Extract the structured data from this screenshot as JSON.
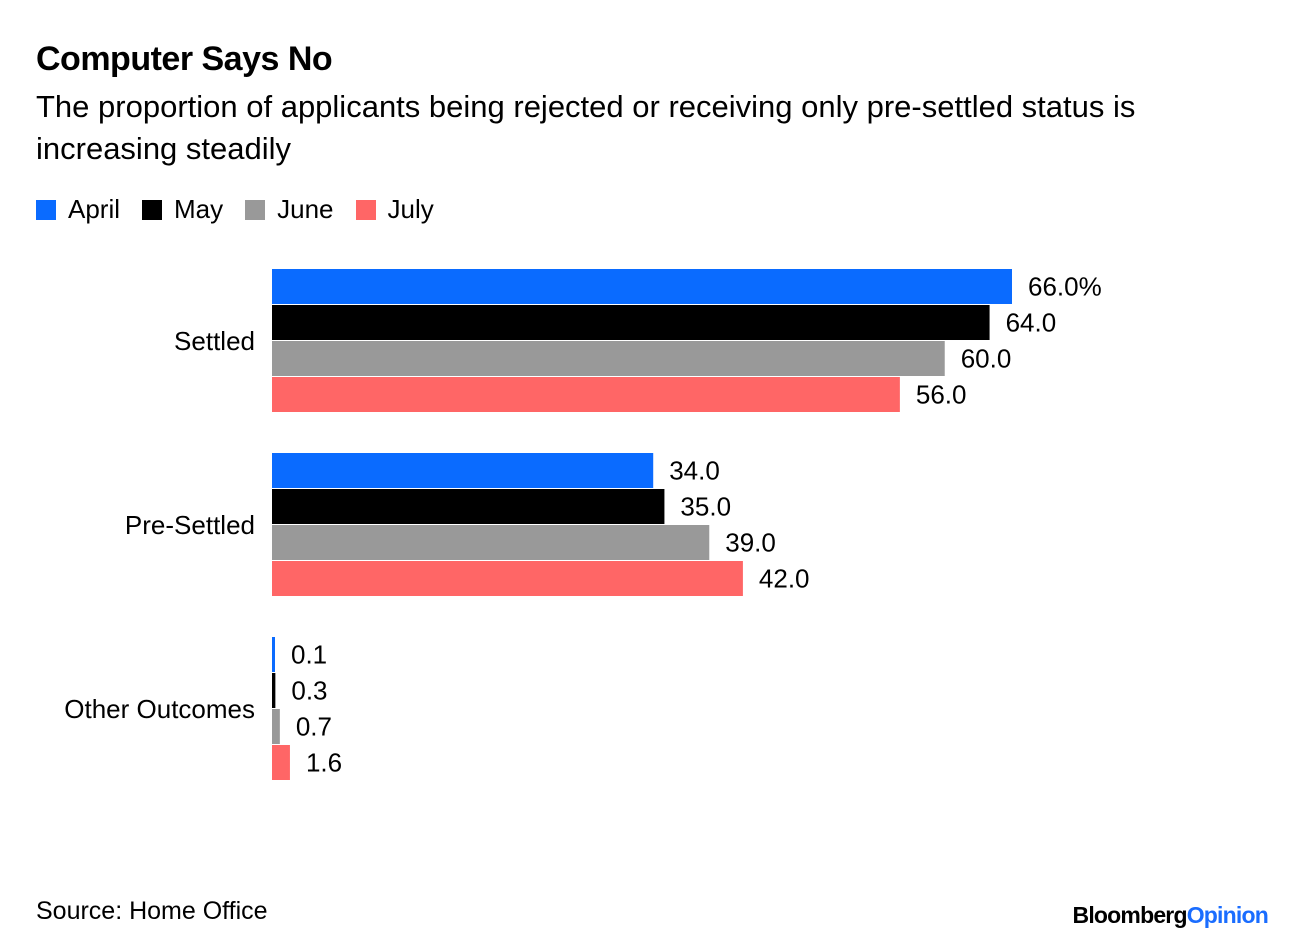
{
  "chart_data": {
    "type": "bar",
    "orientation": "horizontal",
    "title": "Computer Says No",
    "subtitle": "The proportion of applicants being rejected or receiving only pre-settled status is increasing steadily",
    "categories": [
      "Settled",
      "Pre-Settled",
      "Other Outcomes"
    ],
    "series": [
      {
        "name": "April",
        "color": "#0a6bff",
        "values": [
          66.0,
          34.0,
          0.1
        ],
        "labels": [
          "66.0%",
          "34.0",
          "0.1"
        ]
      },
      {
        "name": "May",
        "color": "#000000",
        "values": [
          64.0,
          35.0,
          0.3
        ],
        "labels": [
          "64.0",
          "35.0",
          "0.3"
        ]
      },
      {
        "name": "June",
        "color": "#999999",
        "values": [
          60.0,
          39.0,
          0.7
        ],
        "labels": [
          "60.0",
          "39.0",
          "0.7"
        ]
      },
      {
        "name": "July",
        "color": "#ff6666",
        "values": [
          56.0,
          42.0,
          1.6
        ],
        "labels": [
          "56.0",
          "42.0",
          "1.6"
        ]
      }
    ],
    "xlim": [
      0,
      66
    ],
    "legend_position": "top-left",
    "grid": false
  },
  "footer": {
    "source": "Source: Home Office",
    "brand_main": "Bloomberg",
    "brand_accent": "Opinion"
  }
}
